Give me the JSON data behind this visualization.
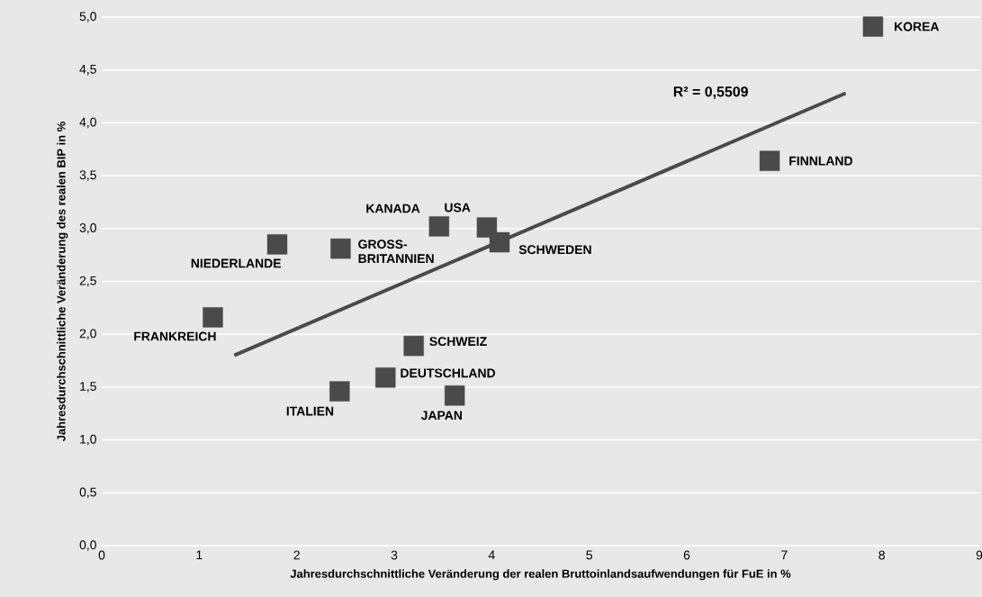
{
  "chart_data": {
    "type": "scatter",
    "xlabel": "Jahresdurchschnittliche Veränderung der realen Bruttoinlandsaufwendungen für FuE in %",
    "ylabel": "Jahresdurchschnittliche Veränderung des realen BIP in %",
    "series": [
      {
        "color": "#4a4a4a",
        "marker": "square",
        "x": [
          7.91,
          6.85,
          3.95,
          4.08,
          3.46,
          2.45,
          1.8,
          1.14,
          3.2,
          2.91,
          2.44,
          3.62
        ],
        "values": [
          4.91,
          3.64,
          3.01,
          2.87,
          3.02,
          2.81,
          2.85,
          2.16,
          1.89,
          1.59,
          1.46,
          1.42
        ]
      },
      {
        "type": "line",
        "color": "#4a4a4a",
        "x": [
          1.36,
          7.63
        ],
        "values": [
          1.8,
          4.28
        ]
      }
    ],
    "xlim": [
      0,
      9
    ],
    "ylim": [
      0,
      5
    ],
    "xticks": [
      0,
      1,
      2,
      3,
      4,
      5,
      6,
      7,
      8,
      9
    ],
    "yticks": [
      {
        "value": 0,
        "label": "0,0"
      },
      {
        "value": 0.5,
        "label": "0,5"
      },
      {
        "value": 1,
        "label": "1,0"
      },
      {
        "value": 1.5,
        "label": "1,5"
      },
      {
        "value": 2,
        "label": "2,0"
      },
      {
        "value": 2.5,
        "label": "2,5"
      },
      {
        "value": 3,
        "label": "3,0"
      },
      {
        "value": 3.5,
        "label": "3,5"
      },
      {
        "value": 4,
        "label": "4,0"
      },
      {
        "value": 4.5,
        "label": "4,5"
      },
      {
        "value": 5,
        "label": "5,0"
      }
    ],
    "grid": "y",
    "annotations": [
      {
        "text": "KOREA",
        "x": 7.91,
        "y": 4.91
      },
      {
        "text": "FINNLAND",
        "x": 6.85,
        "y": 3.64
      },
      {
        "text": "USA",
        "x": 3.95,
        "y": 3.01
      },
      {
        "text": "SCHWEDEN",
        "x": 4.08,
        "y": 2.87
      },
      {
        "text": "KANADA",
        "x": 3.46,
        "y": 3.02
      },
      {
        "text": "GROSS-BRITANNIEN",
        "x": 2.45,
        "y": 2.81
      },
      {
        "text": "NIEDERLANDE",
        "x": 1.8,
        "y": 2.85
      },
      {
        "text": "FRANKREICH",
        "x": 1.14,
        "y": 2.16
      },
      {
        "text": "SCHWEIZ",
        "x": 3.2,
        "y": 1.89
      },
      {
        "text": "DEUTSCHLAND",
        "x": 2.91,
        "y": 1.59
      },
      {
        "text": "ITALIEN",
        "x": 2.44,
        "y": 1.46
      },
      {
        "text": "JAPAN",
        "x": 3.62,
        "y": 1.42
      },
      "R² = 0,5509"
    ]
  }
}
